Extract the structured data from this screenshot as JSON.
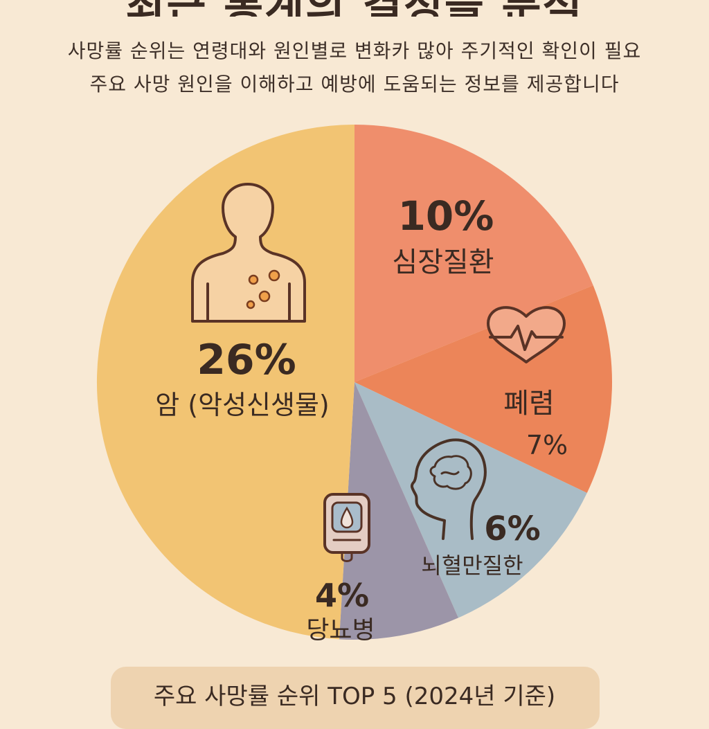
{
  "title": "최근 통계의 결정을 분석",
  "subtitle_lines": [
    "사망률 순위는 연령대와 원인별로 변화카 많아 주기적인 확인이 필요",
    "주요 사망 원인을 이해하고 예방에 도움되는 정보를 제공합니다"
  ],
  "chart_data": {
    "type": "pie",
    "title": "",
    "slices": [
      {
        "label": "심장질환",
        "value_label": "10%",
        "value": 10,
        "color": "#ef8e6c",
        "icon": "heart-icon"
      },
      {
        "label": "폐렴",
        "value_label": "7%",
        "value": 7,
        "color": "#ec8559",
        "icon": "heart-icon"
      },
      {
        "label": "뇌혈만질한",
        "value_label": "6%",
        "value": 6,
        "color": "#a9bcc6",
        "icon": "brain-head-icon"
      },
      {
        "label": "당뇨병",
        "value_label": "4%",
        "value": 4,
        "color": "#9c95a8",
        "icon": "glucose-meter-icon"
      },
      {
        "label": "암 (악성신생물)",
        "value_label": "26%",
        "value": 26,
        "color": "#f2c473",
        "icon": "body-tumor-icon"
      }
    ]
  },
  "footer": {
    "label": "주요 사망률 순위 TOP 5 (2024년 기준)"
  }
}
